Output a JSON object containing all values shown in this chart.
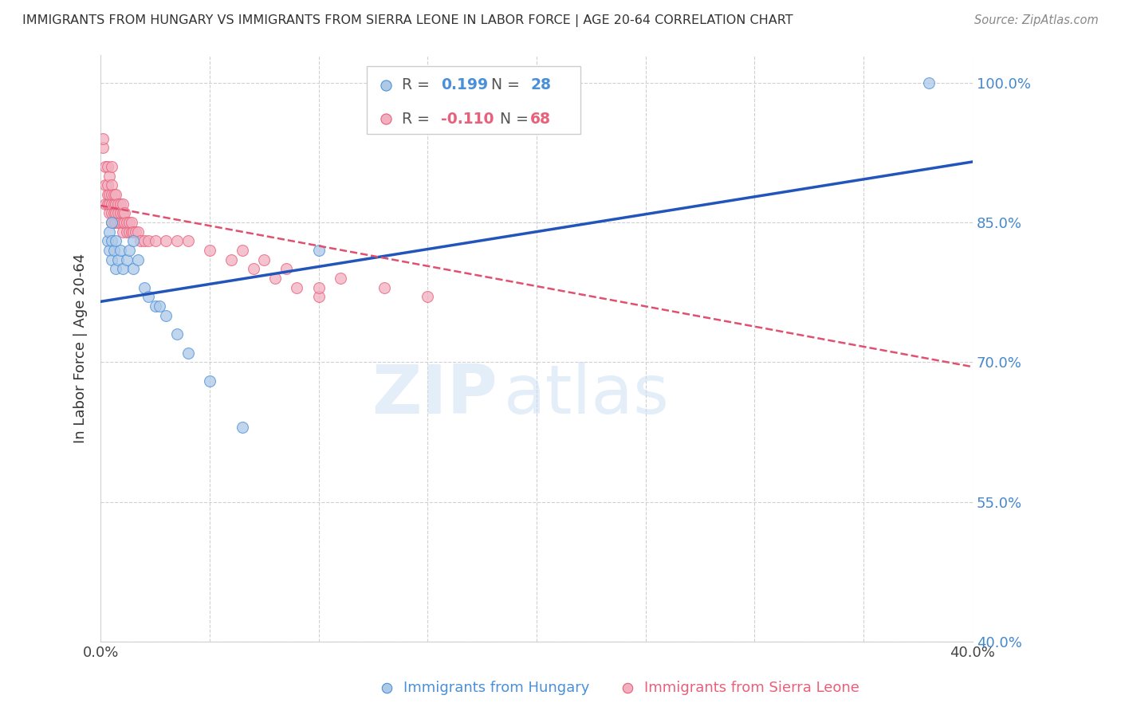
{
  "title": "IMMIGRANTS FROM HUNGARY VS IMMIGRANTS FROM SIERRA LEONE IN LABOR FORCE | AGE 20-64 CORRELATION CHART",
  "source": "Source: ZipAtlas.com",
  "ylabel": "In Labor Force | Age 20-64",
  "xlim": [
    0.0,
    0.4
  ],
  "ylim": [
    0.4,
    1.03
  ],
  "x_ticks": [
    0.0,
    0.05,
    0.1,
    0.15,
    0.2,
    0.25,
    0.3,
    0.35,
    0.4
  ],
  "y_ticks": [
    0.4,
    0.55,
    0.7,
    0.85,
    1.0
  ],
  "y_tick_labels": [
    "40.0%",
    "55.0%",
    "70.0%",
    "85.0%",
    "100.0%"
  ],
  "blue_r": "0.199",
  "blue_n": "28",
  "pink_r": "-0.110",
  "pink_n": "68",
  "blue_color": "#adc9e8",
  "pink_color": "#f2afc0",
  "blue_edge_color": "#4a90d9",
  "pink_edge_color": "#e8607a",
  "blue_line_color": "#2255bb",
  "pink_line_color": "#e05070",
  "blue_scatter_x": [
    0.003,
    0.004,
    0.004,
    0.005,
    0.005,
    0.005,
    0.006,
    0.007,
    0.007,
    0.008,
    0.009,
    0.01,
    0.012,
    0.013,
    0.015,
    0.015,
    0.017,
    0.02,
    0.022,
    0.025,
    0.027,
    0.03,
    0.035,
    0.04,
    0.05,
    0.065,
    0.1,
    0.38
  ],
  "blue_scatter_y": [
    0.83,
    0.82,
    0.84,
    0.81,
    0.83,
    0.85,
    0.82,
    0.8,
    0.83,
    0.81,
    0.82,
    0.8,
    0.81,
    0.82,
    0.8,
    0.83,
    0.81,
    0.78,
    0.77,
    0.76,
    0.76,
    0.75,
    0.73,
    0.71,
    0.68,
    0.63,
    0.82,
    1.0
  ],
  "pink_scatter_x": [
    0.001,
    0.001,
    0.002,
    0.002,
    0.002,
    0.003,
    0.003,
    0.003,
    0.003,
    0.004,
    0.004,
    0.004,
    0.004,
    0.005,
    0.005,
    0.005,
    0.005,
    0.005,
    0.005,
    0.006,
    0.006,
    0.006,
    0.006,
    0.007,
    0.007,
    0.007,
    0.007,
    0.008,
    0.008,
    0.008,
    0.009,
    0.009,
    0.009,
    0.01,
    0.01,
    0.01,
    0.01,
    0.011,
    0.011,
    0.012,
    0.012,
    0.013,
    0.013,
    0.014,
    0.014,
    0.015,
    0.016,
    0.017,
    0.018,
    0.02,
    0.022,
    0.025,
    0.03,
    0.035,
    0.04,
    0.05,
    0.06,
    0.07,
    0.08,
    0.09,
    0.1,
    0.11,
    0.13,
    0.15,
    0.065,
    0.075,
    0.085,
    0.1
  ],
  "pink_scatter_y": [
    0.93,
    0.94,
    0.87,
    0.89,
    0.91,
    0.87,
    0.88,
    0.89,
    0.91,
    0.86,
    0.87,
    0.88,
    0.9,
    0.85,
    0.86,
    0.87,
    0.88,
    0.89,
    0.91,
    0.85,
    0.86,
    0.87,
    0.88,
    0.85,
    0.86,
    0.87,
    0.88,
    0.85,
    0.86,
    0.87,
    0.85,
    0.86,
    0.87,
    0.84,
    0.85,
    0.86,
    0.87,
    0.85,
    0.86,
    0.84,
    0.85,
    0.84,
    0.85,
    0.84,
    0.85,
    0.84,
    0.84,
    0.84,
    0.83,
    0.83,
    0.83,
    0.83,
    0.83,
    0.83,
    0.83,
    0.82,
    0.81,
    0.8,
    0.79,
    0.78,
    0.77,
    0.79,
    0.78,
    0.77,
    0.82,
    0.81,
    0.8,
    0.78
  ],
  "blue_line_x0": 0.0,
  "blue_line_x1": 0.4,
  "blue_line_y0": 0.765,
  "blue_line_y1": 0.915,
  "pink_line_x0": 0.0,
  "pink_line_x1": 0.4,
  "pink_line_y0": 0.868,
  "pink_line_y1": 0.695,
  "watermark_zip": "ZIP",
  "watermark_atlas": "atlas",
  "legend_blue_label1": "R = ",
  "legend_blue_r": " 0.199",
  "legend_blue_label2": "  N = ",
  "legend_blue_n": "28",
  "legend_pink_label1": "R = ",
  "legend_pink_r": "-0.110",
  "legend_pink_label2": "  N = ",
  "legend_pink_n": "68"
}
